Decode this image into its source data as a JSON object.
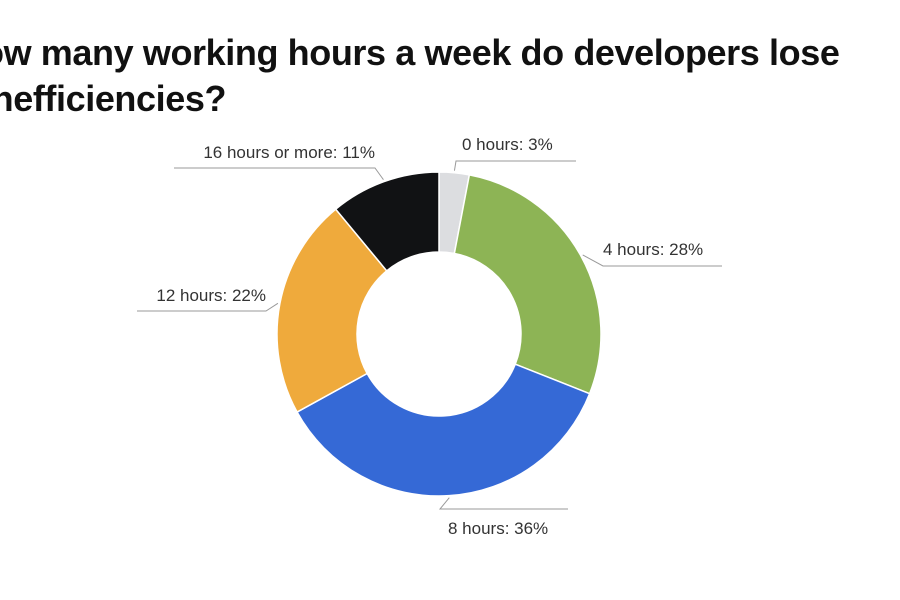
{
  "title": {
    "line1": "ow many working hours a week do developers lose",
    "line2": "inefficiencies?"
  },
  "chart_data": {
    "type": "pie",
    "variant": "donut",
    "title": "ow many working hours a week do developers lose inefficiencies?",
    "legend": "none",
    "slices": [
      {
        "label": "0 hours",
        "value": 3,
        "display": "0 hours: 3%",
        "color": "#dcdde0"
      },
      {
        "label": "4 hours",
        "value": 28,
        "display": "4 hours: 28%",
        "color": "#8db455"
      },
      {
        "label": "8 hours",
        "value": 36,
        "display": "8 hours: 36%",
        "color": "#3569d6"
      },
      {
        "label": "12 hours",
        "value": 22,
        "display": "12 hours: 22%",
        "color": "#efaa3c"
      },
      {
        "label": "16 hours or more",
        "value": 11,
        "display": "16 hours or more: 11%",
        "color": "#111214"
      }
    ]
  }
}
